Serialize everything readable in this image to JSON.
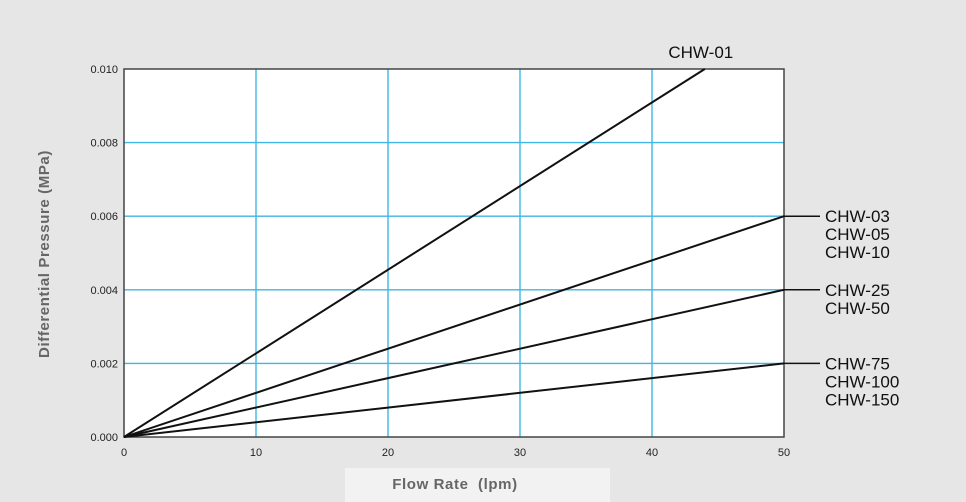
{
  "chart_data": {
    "type": "line",
    "title": "",
    "xlabel": "Flow Rate  (lpm)",
    "ylabel": "Differential Pressure (MPa)",
    "xlim": [
      0,
      50
    ],
    "ylim": [
      0,
      0.01
    ],
    "x_ticks": [
      "0",
      "10",
      "20",
      "30",
      "40",
      "50"
    ],
    "y_ticks": [
      "0.000",
      "0.002",
      "0.004",
      "0.006",
      "0.008",
      "0.010"
    ],
    "grid": true,
    "colors": {
      "background": "#e6e6e6",
      "plot_area": "#ffffff",
      "grid": "#3fb6e3",
      "line": "#111111",
      "axis_text": "#666666"
    },
    "series": [
      {
        "labels": [
          "CHW-01"
        ],
        "x": [
          0,
          44
        ],
        "y": [
          0,
          0.01
        ]
      },
      {
        "labels": [
          "CHW-03",
          "CHW-05",
          "CHW-10"
        ],
        "x": [
          0,
          50
        ],
        "y": [
          0,
          0.006
        ]
      },
      {
        "labels": [
          "CHW-25",
          "CHW-50"
        ],
        "x": [
          0,
          50
        ],
        "y": [
          0,
          0.004
        ]
      },
      {
        "labels": [
          "CHW-75",
          "CHW-100",
          "CHW-150"
        ],
        "x": [
          0,
          50
        ],
        "y": [
          0,
          0.002
        ]
      }
    ]
  }
}
